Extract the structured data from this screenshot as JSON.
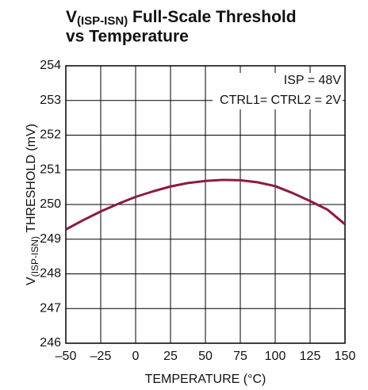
{
  "chart_data": {
    "type": "line",
    "title": [
      "V",
      "(ISP-ISN)",
      " Full-Scale Threshold",
      "vs Temperature"
    ],
    "x_label": "TEMPERATURE (°C)",
    "y_label": [
      "V",
      "(ISP-ISN)",
      " THRESHOLD (mV)"
    ],
    "annotations": [
      "ISP = 48V",
      "CTRL1= CTRL2 = 2V"
    ],
    "x": [
      -50,
      -37.5,
      -25,
      -12.5,
      0,
      12.5,
      25,
      37.5,
      50,
      62.5,
      75,
      87.5,
      100,
      112.5,
      125,
      137.5,
      150
    ],
    "series": [
      {
        "color": "#8c1c3c",
        "values": [
          249.28,
          249.55,
          249.8,
          250.02,
          250.22,
          250.38,
          250.52,
          250.62,
          250.68,
          250.71,
          250.7,
          250.64,
          250.53,
          250.33,
          250.1,
          249.85,
          249.43
        ]
      }
    ],
    "xlim": [
      -50,
      150
    ],
    "xticks": [
      {
        "value": -50,
        "label": "–50"
      },
      {
        "value": -25,
        "label": "–25"
      },
      0,
      25,
      50,
      75,
      100,
      125,
      150
    ],
    "ylim": [
      246,
      254
    ],
    "yticks": [
      246,
      247,
      248,
      249,
      250,
      251,
      252,
      253,
      254
    ],
    "grid": true
  }
}
